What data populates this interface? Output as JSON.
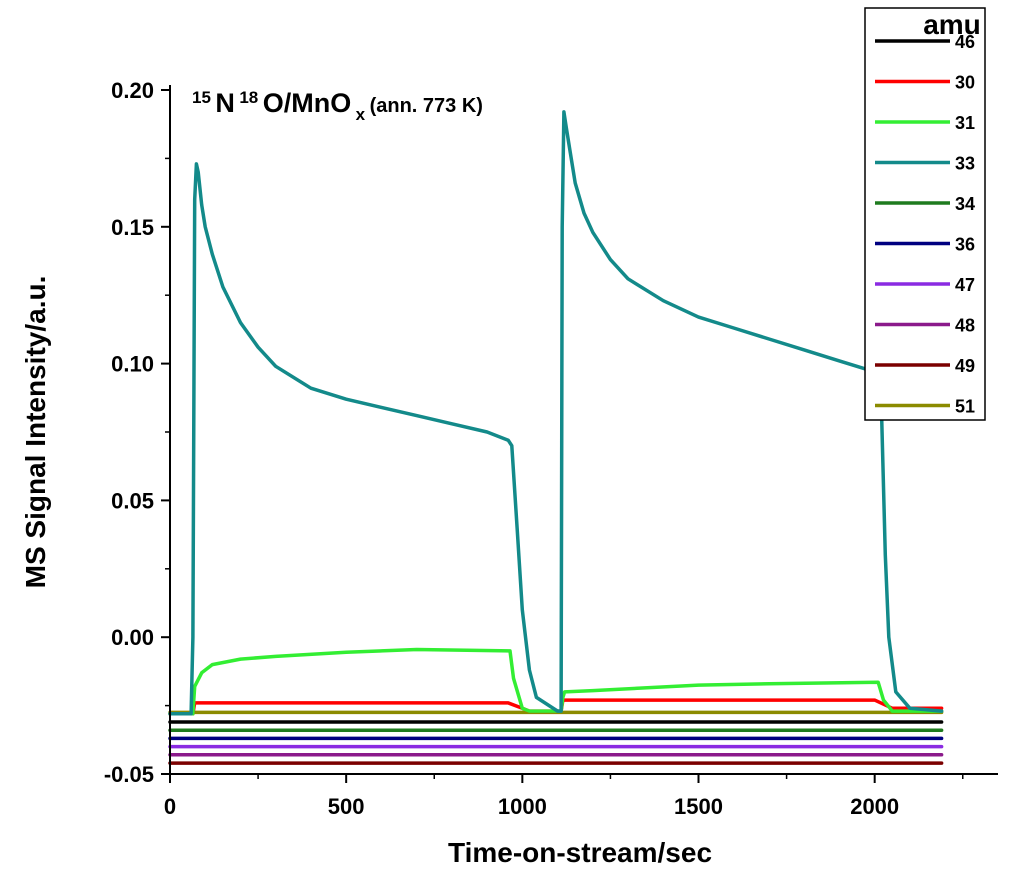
{
  "chart_data": {
    "type": "line",
    "xlabel": "Time-on-stream/sec",
    "ylabel": "MS Signal Intensity/a.u.",
    "xlim": [
      0,
      2350
    ],
    "ylim": [
      -0.05,
      0.2
    ],
    "x_ticks": [
      0,
      500,
      1000,
      1500,
      2000
    ],
    "y_ticks": [
      -0.05,
      0.0,
      0.05,
      0.1,
      0.15,
      0.2
    ],
    "x_tick_labels": [
      "0",
      "500",
      "1000",
      "1500",
      "2000"
    ],
    "y_tick_labels": [
      "-0.05",
      "0.00",
      "0.05",
      "0.10",
      "0.15",
      "0.20"
    ],
    "annotation": {
      "n_mass": "15",
      "n_symbol": "N",
      "o_mass": "18",
      "o_symbol": "O/MnO",
      "o_sub": "x",
      "suffix": " (ann. 773 K)"
    },
    "legend": {
      "title": "amu",
      "placement": "top-right"
    },
    "series": [
      {
        "name": "46",
        "color": "#000000",
        "x": [
          0,
          2190
        ],
        "y": [
          -0.031,
          -0.031
        ]
      },
      {
        "name": "30",
        "color": "#ff0000",
        "x": [
          0,
          65,
          70,
          960,
          1000,
          1020,
          1110,
          1115,
          1500,
          2000,
          2050,
          2190
        ],
        "y": [
          -0.028,
          -0.028,
          -0.024,
          -0.024,
          -0.026,
          -0.027,
          -0.027,
          -0.023,
          -0.023,
          -0.023,
          -0.026,
          -0.026
        ]
      },
      {
        "name": "31",
        "color": "#33ee33",
        "x": [
          0,
          65,
          70,
          90,
          120,
          200,
          300,
          500,
          700,
          965,
          975,
          1000,
          1020,
          1110,
          1115,
          1120,
          1200,
          1500,
          1700,
          2010,
          2025,
          2050,
          2190
        ],
        "y": [
          -0.028,
          -0.028,
          -0.018,
          -0.013,
          -0.01,
          -0.008,
          -0.007,
          -0.0055,
          -0.0045,
          -0.005,
          -0.015,
          -0.026,
          -0.027,
          -0.027,
          -0.022,
          -0.02,
          -0.0195,
          -0.0175,
          -0.017,
          -0.0165,
          -0.023,
          -0.027,
          -0.027
        ]
      },
      {
        "name": "33",
        "color": "#138a8a",
        "x": [
          0,
          60,
          65,
          70,
          75,
          80,
          90,
          100,
          120,
          150,
          200,
          250,
          300,
          400,
          500,
          600,
          700,
          800,
          900,
          960,
          970,
          985,
          1000,
          1020,
          1040,
          1100,
          1110,
          1113,
          1118,
          1125,
          1135,
          1150,
          1175,
          1200,
          1250,
          1300,
          1400,
          1500,
          1600,
          1700,
          1800,
          1900,
          2000,
          2010,
          2020,
          2030,
          2040,
          2060,
          2100,
          2190
        ],
        "y": [
          -0.028,
          -0.028,
          0.0,
          0.16,
          0.173,
          0.17,
          0.158,
          0.15,
          0.14,
          0.128,
          0.115,
          0.106,
          0.099,
          0.091,
          0.087,
          0.084,
          0.081,
          0.078,
          0.075,
          0.072,
          0.07,
          0.04,
          0.01,
          -0.012,
          -0.022,
          -0.027,
          -0.027,
          0.15,
          0.192,
          0.186,
          0.178,
          0.166,
          0.155,
          0.148,
          0.138,
          0.131,
          0.123,
          0.117,
          0.113,
          0.109,
          0.105,
          0.101,
          0.097,
          0.096,
          0.08,
          0.03,
          0.0,
          -0.02,
          -0.026,
          -0.027
        ]
      },
      {
        "name": "34",
        "color": "#1e7b1e",
        "x": [
          0,
          2190
        ],
        "y": [
          -0.034,
          -0.034
        ]
      },
      {
        "name": "36",
        "color": "#000080",
        "x": [
          0,
          2190
        ],
        "y": [
          -0.037,
          -0.037
        ]
      },
      {
        "name": "47",
        "color": "#8a2be2",
        "x": [
          0,
          2190
        ],
        "y": [
          -0.04,
          -0.04
        ]
      },
      {
        "name": "48",
        "color": "#8b1a8b",
        "x": [
          0,
          2190
        ],
        "y": [
          -0.043,
          -0.043
        ]
      },
      {
        "name": "49",
        "color": "#7b0000",
        "x": [
          0,
          2190
        ],
        "y": [
          -0.046,
          -0.046
        ]
      },
      {
        "name": "51",
        "color": "#8b8b00",
        "x": [
          0,
          2190
        ],
        "y": [
          -0.0275,
          -0.0275
        ]
      }
    ]
  }
}
